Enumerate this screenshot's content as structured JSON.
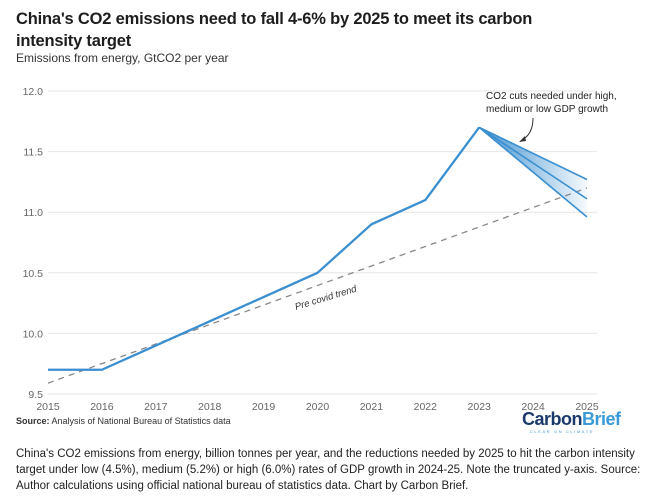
{
  "title": "China's CO2 emissions need to fall 4-6% by 2025 to meet its carbon intensity target",
  "subtitle": "Emissions from energy, GtCO2 per year",
  "source_label": "Source:",
  "source_text": "Analysis of National Bureau of Statistics data",
  "logo": {
    "part1": "Carbon",
    "part2": "Brief",
    "tagline": "CLEAR ON CLIMATE"
  },
  "caption": "China's CO2 emissions from energy, billion tonnes per year, and the reductions needed by 2025 to hit the carbon intensity target under low (4.5%), medium (5.2%) or high (6.0%) rates of GDP growth in 2024-25. Note the truncated y-axis. Source: Author calculations using official national bureau of statistics data. Chart by Carbon Brief.",
  "colors": {
    "line": "#3a8fd0",
    "trend": "#888888",
    "grid": "#e6e6e6"
  },
  "chart_data": {
    "type": "line",
    "title": "China's CO2 emissions need to fall 4-6% by 2025 to meet its carbon intensity target",
    "ylabel": "Emissions from energy, GtCO2 per year",
    "xlabel": "",
    "x": [
      2015,
      2016,
      2017,
      2018,
      2019,
      2020,
      2021,
      2022,
      2023
    ],
    "xlim": [
      2015,
      2025
    ],
    "ylim": [
      9.5,
      12.0
    ],
    "xticks": [
      "2015",
      "2016",
      "2017",
      "2018",
      "2019",
      "2020",
      "2021",
      "2022",
      "2023",
      "2024",
      "2025"
    ],
    "yticks": [
      "9.5",
      "10.0",
      "10.5",
      "11.0",
      "11.5",
      "12.0"
    ],
    "grid": true,
    "series": [
      {
        "name": "Emissions",
        "x": [
          2015,
          2016,
          2017,
          2018,
          2019,
          2020,
          2021,
          2022,
          2023
        ],
        "values": [
          9.7,
          9.7,
          9.9,
          10.1,
          10.3,
          10.5,
          10.9,
          11.1,
          11.7
        ]
      },
      {
        "name": "Pre covid trend",
        "style": "dashed",
        "x": [
          2015,
          2025
        ],
        "values": [
          9.59,
          11.2
        ]
      },
      {
        "name": "High GDP growth cut",
        "x": [
          2023,
          2025
        ],
        "values": [
          11.7,
          11.27
        ]
      },
      {
        "name": "Medium GDP growth cut",
        "x": [
          2023,
          2025
        ],
        "values": [
          11.7,
          11.11
        ]
      },
      {
        "name": "Low GDP growth cut",
        "x": [
          2023,
          2025
        ],
        "values": [
          11.7,
          10.96
        ]
      }
    ],
    "annotations": [
      {
        "text": "CO2 cuts needed under high, medium or low GDP growth",
        "lines": [
          "CO2 cuts needed under high,",
          "medium or low GDP growth"
        ]
      },
      {
        "text": "Pre covid trend"
      }
    ]
  }
}
